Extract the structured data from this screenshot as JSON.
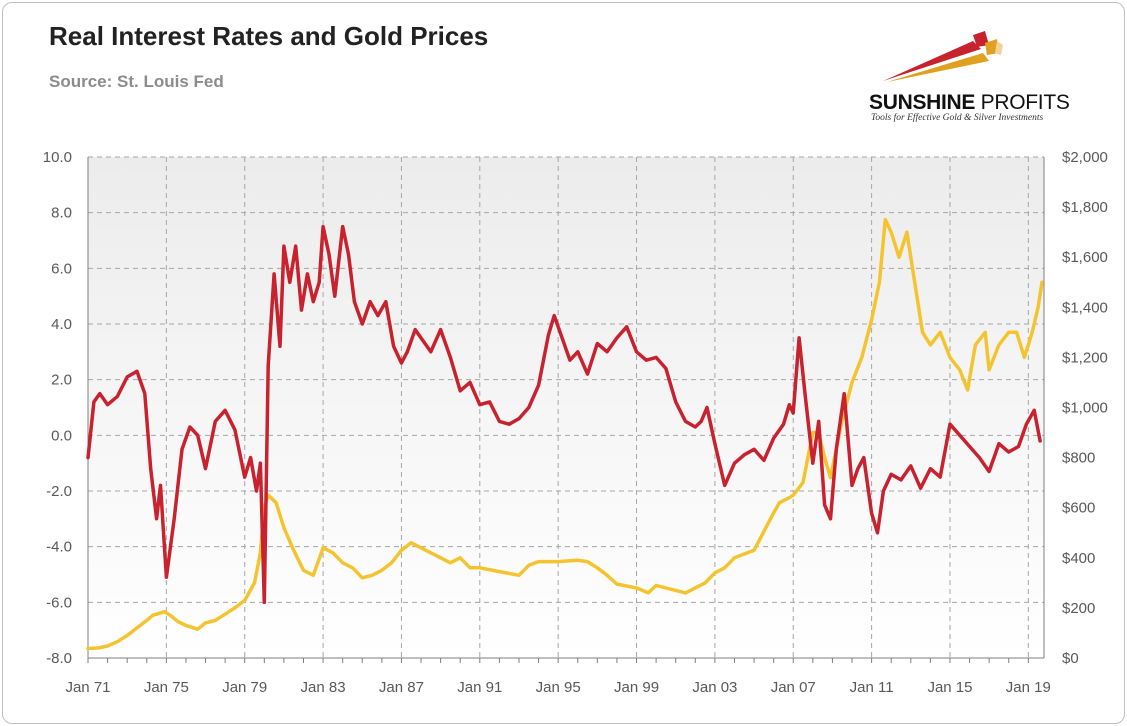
{
  "title": "Real Interest Rates and Gold Prices",
  "subtitle": "Source: St. Louis Fed",
  "logo": {
    "name_bold": "SUNSHINE",
    "name_rest": " PROFITS",
    "tagline": "Tools for Effective Gold & Silver Investments"
  },
  "colors": {
    "real_rate_line": "#c8222f",
    "gold_line": "#f4c430",
    "grid": "#a6a6a6"
  },
  "chart_data": {
    "type": "line",
    "title": "Real Interest Rates and Gold Prices",
    "grid": true,
    "legend": "none",
    "x_ticks": [
      "Jan 71",
      "Jan 75",
      "Jan 79",
      "Jan 83",
      "Jan 87",
      "Jan 91",
      "Jan 95",
      "Jan 99",
      "Jan 03",
      "Jan 07",
      "Jan 11",
      "Jan 15",
      "Jan 19"
    ],
    "y_left": {
      "range": [
        -8,
        10
      ],
      "ticks": [
        "10.0",
        "8.0",
        "6.0",
        "4.0",
        "2.0",
        "0.0",
        "-2.0",
        "-4.0",
        "-6.0",
        "-8.0"
      ]
    },
    "y_right": {
      "range": [
        0,
        2000
      ],
      "ticks": [
        "$2,000",
        "$1,800",
        "$1,600",
        "$1,400",
        "$1,200",
        "$1,000",
        "$800",
        "$600",
        "$400",
        "$200",
        "$0"
      ]
    },
    "series": [
      {
        "axis": "left",
        "x": [
          1971.0,
          1971.3,
          1971.6,
          1972.0,
          1972.5,
          1973.0,
          1973.5,
          1973.9,
          1974.2,
          1974.5,
          1974.7,
          1975.0,
          1975.4,
          1975.8,
          1976.2,
          1976.6,
          1977.0,
          1977.5,
          1978.0,
          1978.5,
          1979.0,
          1979.3,
          1979.6,
          1979.8,
          1980.0,
          1980.2,
          1980.5,
          1980.8,
          1981.0,
          1981.3,
          1981.6,
          1981.9,
          1982.2,
          1982.5,
          1982.8,
          1983.0,
          1983.3,
          1983.6,
          1984.0,
          1984.3,
          1984.6,
          1985.0,
          1985.4,
          1985.8,
          1986.2,
          1986.6,
          1987.0,
          1987.3,
          1987.7,
          1988.0,
          1988.5,
          1989.0,
          1989.5,
          1990.0,
          1990.5,
          1991.0,
          1991.5,
          1992.0,
          1992.5,
          1993.0,
          1993.5,
          1994.0,
          1994.5,
          1994.8,
          1995.2,
          1995.6,
          1996.0,
          1996.5,
          1997.0,
          1997.5,
          1998.0,
          1998.5,
          1999.0,
          1999.5,
          2000.0,
          2000.5,
          2001.0,
          2001.5,
          2002.0,
          2002.3,
          2002.6,
          2003.0,
          2003.5,
          2004.0,
          2004.5,
          2005.0,
          2005.5,
          2006.0,
          2006.5,
          2006.8,
          2007.0,
          2007.3,
          2007.6,
          2008.0,
          2008.3,
          2008.6,
          2008.9,
          2009.2,
          2009.6,
          2010.0,
          2010.3,
          2010.6,
          2011.0,
          2011.3,
          2011.6,
          2012.0,
          2012.5,
          2013.0,
          2013.5,
          2014.0,
          2014.5,
          2015.0,
          2015.5,
          2016.0,
          2016.5,
          2017.0,
          2017.5,
          2018.0,
          2018.5,
          2018.9,
          2019.3,
          2019.6
        ],
        "values": [
          -0.8,
          1.2,
          1.5,
          1.1,
          1.4,
          2.1,
          2.3,
          1.5,
          -1.2,
          -3.0,
          -1.8,
          -5.1,
          -3.0,
          -0.5,
          0.3,
          0.0,
          -1.2,
          0.5,
          0.9,
          0.2,
          -1.5,
          -0.8,
          -2.0,
          -1.0,
          -6.0,
          2.5,
          5.8,
          3.2,
          6.8,
          5.5,
          6.8,
          4.5,
          5.8,
          4.8,
          5.5,
          7.5,
          6.5,
          5.0,
          7.5,
          6.5,
          4.8,
          4.0,
          4.8,
          4.3,
          4.8,
          3.2,
          2.6,
          3.0,
          3.8,
          3.5,
          3.0,
          3.8,
          2.8,
          1.6,
          1.9,
          1.1,
          1.2,
          0.5,
          0.4,
          0.6,
          1.0,
          1.8,
          3.6,
          4.3,
          3.5,
          2.7,
          3.0,
          2.2,
          3.3,
          3.0,
          3.5,
          3.9,
          3.0,
          2.7,
          2.8,
          2.4,
          1.2,
          0.5,
          0.3,
          0.5,
          1.0,
          -0.3,
          -1.8,
          -1.0,
          -0.7,
          -0.5,
          -0.9,
          -0.1,
          0.4,
          1.1,
          0.8,
          3.5,
          1.5,
          -1.0,
          0.5,
          -2.5,
          -3.0,
          -0.5,
          1.5,
          -1.8,
          -1.2,
          -0.8,
          -2.8,
          -3.5,
          -2.0,
          -1.4,
          -1.6,
          -1.1,
          -1.9,
          -1.2,
          -1.5,
          0.4,
          0.0,
          -0.4,
          -0.8,
          -1.3,
          -0.3,
          -0.6,
          -0.4,
          0.4,
          0.9,
          -0.2
        ]
      },
      {
        "axis": "right",
        "x": [
          1971.0,
          1971.5,
          1972.0,
          1972.5,
          1973.0,
          1973.5,
          1974.0,
          1974.3,
          1974.9,
          1975.2,
          1975.6,
          1976.0,
          1976.6,
          1977.0,
          1977.5,
          1978.0,
          1978.5,
          1979.0,
          1979.5,
          1979.8,
          1980.0,
          1980.2,
          1980.6,
          1981.0,
          1981.5,
          1982.0,
          1982.5,
          1983.0,
          1983.5,
          1984.0,
          1984.5,
          1985.0,
          1985.5,
          1986.0,
          1986.5,
          1987.0,
          1987.5,
          1988.0,
          1988.5,
          1989.0,
          1989.5,
          1990.0,
          1990.5,
          1991.0,
          1992.0,
          1993.0,
          1993.5,
          1994.0,
          1995.0,
          1996.0,
          1996.5,
          1997.0,
          1997.5,
          1998.0,
          1999.0,
          1999.6,
          2000.0,
          2001.0,
          2001.5,
          2002.0,
          2002.5,
          2003.0,
          2003.5,
          2004.0,
          2005.0,
          2006.0,
          2006.3,
          2006.8,
          2007.0,
          2007.5,
          2008.0,
          2008.3,
          2008.6,
          2008.9,
          2009.5,
          2010.0,
          2010.5,
          2011.0,
          2011.4,
          2011.7,
          2012.0,
          2012.4,
          2012.8,
          2013.2,
          2013.6,
          2014.0,
          2014.5,
          2015.0,
          2015.5,
          2015.9,
          2016.3,
          2016.8,
          2017.0,
          2017.5,
          2018.0,
          2018.4,
          2018.8,
          2019.2,
          2019.5,
          2019.7
        ],
        "values": [
          38,
          40,
          48,
          65,
          90,
          120,
          150,
          170,
          185,
          170,
          145,
          130,
          115,
          140,
          150,
          175,
          200,
          230,
          300,
          420,
          600,
          650,
          620,
          520,
          430,
          350,
          330,
          440,
          420,
          380,
          360,
          320,
          330,
          350,
          380,
          430,
          460,
          440,
          420,
          400,
          380,
          400,
          360,
          360,
          345,
          330,
          370,
          385,
          385,
          390,
          385,
          360,
          330,
          295,
          280,
          260,
          290,
          270,
          260,
          280,
          300,
          340,
          360,
          400,
          430,
          580,
          620,
          640,
          650,
          700,
          900,
          900,
          800,
          720,
          950,
          1100,
          1200,
          1350,
          1500,
          1750,
          1700,
          1600,
          1700,
          1500,
          1300,
          1250,
          1300,
          1200,
          1150,
          1070,
          1250,
          1300,
          1150,
          1250,
          1300,
          1300,
          1200,
          1300,
          1400,
          1500
        ]
      }
    ]
  }
}
